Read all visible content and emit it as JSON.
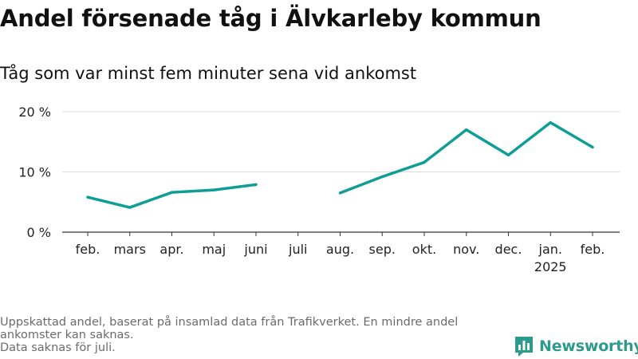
{
  "title": "Andel försenade tåg i Älvkarleby kommun",
  "subtitle": "Tåg som var minst fem minuter sena vid ankomst",
  "footnote": {
    "line1": "Uppskattad andel, baserat på insamlad data från Trafikverket. En mindre andel ankomster kan saknas.",
    "line2": "Data saknas för juli."
  },
  "brand": {
    "name": "Newsworthy",
    "icon": "newsworthy-logo-icon",
    "color": "#2d9a8c"
  },
  "chart_data": {
    "type": "line",
    "categories": [
      "feb.",
      "mars",
      "apr.",
      "maj",
      "juni",
      "juli",
      "aug.",
      "sep.",
      "okt.",
      "nov.",
      "dec.",
      "jan.",
      "feb."
    ],
    "category_sublabels": [
      "",
      "",
      "",
      "",
      "",
      "",
      "",
      "",
      "",
      "",
      "",
      "2025",
      ""
    ],
    "series": [
      {
        "values": [
          5.8,
          4.1,
          6.6,
          7.0,
          7.9,
          null,
          6.5,
          9.2,
          11.6,
          17.0,
          12.8,
          18.2,
          14.1
        ],
        "color": "#0f9e96"
      }
    ],
    "ylim": [
      0,
      20
    ],
    "yticks": [
      0,
      10,
      20
    ],
    "ytick_labels": [
      "0 %",
      "10 %",
      "20 %"
    ],
    "grid": true,
    "legend": "none"
  }
}
